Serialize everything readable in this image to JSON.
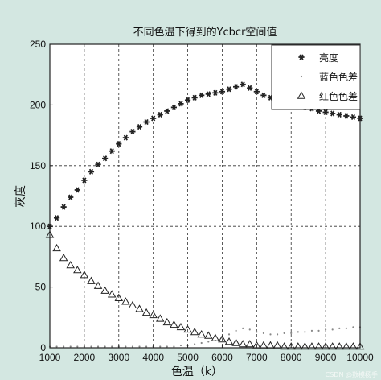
{
  "chart_data": {
    "type": "scatter",
    "title": "不同色温下得到的Ycbcr空间值",
    "xlabel": "色温（k）",
    "ylabel": "灰度",
    "xlim": [
      1000,
      10000
    ],
    "ylim": [
      0,
      250
    ],
    "xticks": [
      1000,
      2000,
      3000,
      4000,
      5000,
      6000,
      7000,
      8000,
      9000,
      10000
    ],
    "yticks": [
      0,
      50,
      100,
      150,
      200,
      250
    ],
    "grid": true,
    "legend_position": "top-right",
    "series": [
      {
        "name": "亮度",
        "marker": "star",
        "color": "#222222",
        "x": [
          1000,
          1200,
          1400,
          1600,
          1800,
          2000,
          2200,
          2400,
          2600,
          2800,
          3000,
          3200,
          3400,
          3600,
          3800,
          4000,
          4200,
          4400,
          4600,
          4800,
          5000,
          5200,
          5400,
          5600,
          5800,
          6000,
          6200,
          6400,
          6600,
          6800,
          7000,
          7200,
          7400,
          7600,
          7800,
          8000,
          8200,
          8400,
          8600,
          8800,
          9000,
          9200,
          9400,
          9600,
          9800,
          10000
        ],
        "y": [
          100,
          107,
          116,
          124,
          130,
          138,
          145,
          151,
          156,
          162,
          168,
          173,
          178,
          182,
          186,
          189,
          192,
          195,
          198,
          201,
          204,
          206,
          208,
          209,
          210,
          211,
          213,
          215,
          217,
          214,
          211,
          208,
          206,
          204,
          203,
          201,
          199,
          198,
          197,
          195,
          194,
          193,
          192,
          191,
          190,
          189
        ]
      },
      {
        "name": "蓝色色差",
        "marker": "dot",
        "color": "#888888",
        "x": [
          1000,
          1200,
          1400,
          1600,
          1800,
          2000,
          2200,
          2400,
          2600,
          2800,
          3000,
          3200,
          3400,
          3600,
          3800,
          4000,
          4200,
          4400,
          4600,
          4800,
          5000,
          5200,
          5400,
          5600,
          5800,
          6000,
          6200,
          6400,
          6600,
          6800,
          7000,
          7200,
          7400,
          7600,
          7800,
          8000,
          8200,
          8400,
          8600,
          8800,
          9000,
          9200,
          9400,
          9600,
          9800,
          10000
        ],
        "y": [
          1,
          1,
          1,
          1,
          1,
          1,
          1,
          1,
          1,
          1,
          1,
          1,
          1,
          1,
          1,
          1,
          1,
          1,
          1,
          2,
          2,
          3,
          4,
          5,
          6,
          8,
          11,
          14,
          16,
          15,
          13,
          12,
          11,
          11,
          12,
          12,
          13,
          13,
          14,
          14,
          15,
          15,
          16,
          16,
          17,
          17
        ]
      },
      {
        "name": "红色色差",
        "marker": "triangle",
        "color": "#222222",
        "x": [
          1000,
          1200,
          1400,
          1600,
          1800,
          2000,
          2200,
          2400,
          2600,
          2800,
          3000,
          3200,
          3400,
          3600,
          3800,
          4000,
          4200,
          4400,
          4600,
          4800,
          5000,
          5200,
          5400,
          5600,
          5800,
          6000,
          6200,
          6400,
          6600,
          6800,
          7000,
          7200,
          7400,
          7600,
          7800,
          8000,
          8200,
          8400,
          8600,
          8800,
          9000,
          9200,
          9400,
          9600,
          9800,
          10000
        ],
        "y": [
          93,
          82,
          74,
          68,
          64,
          60,
          55,
          51,
          47,
          44,
          41,
          38,
          35,
          32,
          29,
          27,
          24,
          21,
          19,
          17,
          15,
          13,
          11,
          10,
          8,
          7,
          5,
          4,
          3,
          3,
          2,
          2,
          2,
          2,
          1,
          1,
          1,
          1,
          1,
          1,
          1,
          1,
          1,
          1,
          1,
          1
        ]
      }
    ]
  },
  "watermark": "CSDN @数模杨手"
}
